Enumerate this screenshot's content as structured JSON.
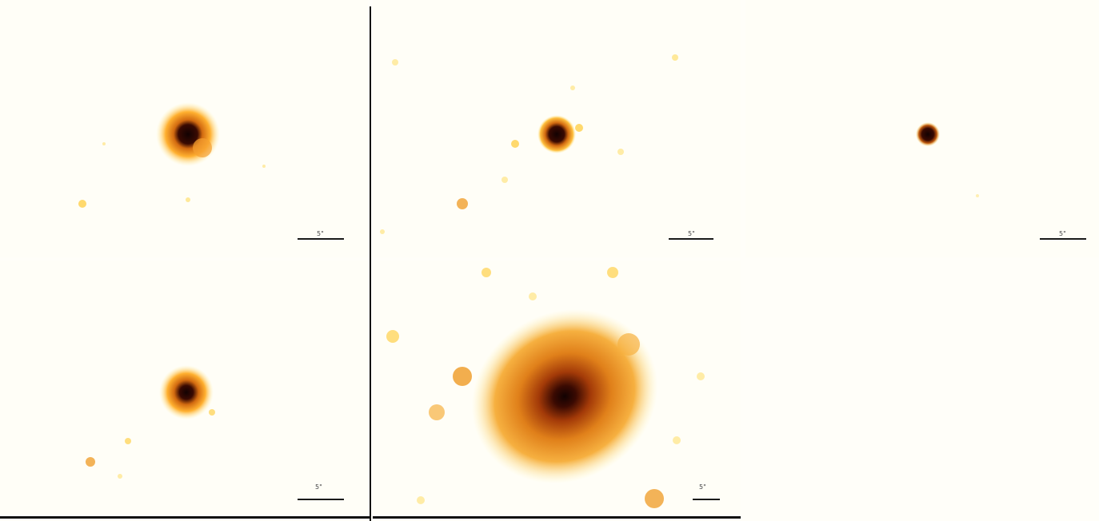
{
  "figure": {
    "panels": [
      {
        "id": "top-left",
        "scale_label": "5\""
      },
      {
        "id": "top-middle",
        "scale_label": "5\""
      },
      {
        "id": "top-right",
        "scale_label": "5\""
      },
      {
        "id": "bottom-left",
        "scale_label": "5\""
      },
      {
        "id": "bottom-middle",
        "scale_label": "5\""
      }
    ],
    "colormap": [
      "#fffef7",
      "#fff3b0",
      "#ffd04a",
      "#f0a030",
      "#d26a10",
      "#a33a08",
      "#3a0a02",
      "#120202"
    ]
  }
}
